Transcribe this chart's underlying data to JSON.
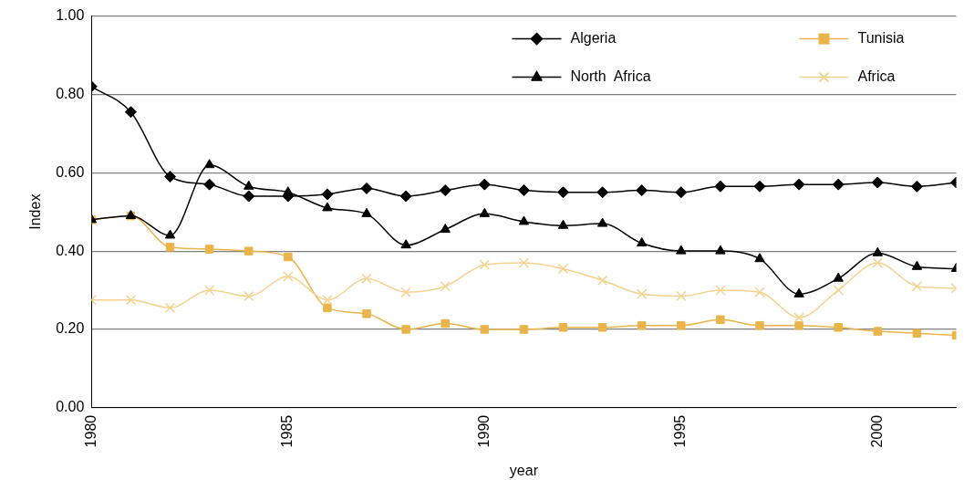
{
  "chart_data": {
    "type": "line",
    "xlabel": "year",
    "ylabel": "Index",
    "x": [
      1980,
      1981,
      1982,
      1983,
      1984,
      1985,
      1986,
      1987,
      1988,
      1989,
      1990,
      1991,
      1992,
      1993,
      1994,
      1995,
      1996,
      1997,
      1998,
      1999,
      2000,
      2001,
      2002
    ],
    "xlim": [
      1980,
      2002
    ],
    "xticks": [
      1980,
      1985,
      1990,
      1995,
      2000
    ],
    "ylim": [
      0,
      1
    ],
    "yticks": [
      {
        "value": 0,
        "label": "0.00"
      },
      {
        "value": 0.2,
        "label": "0.20"
      },
      {
        "value": 0.4,
        "label": "0.40"
      },
      {
        "value": 0.6,
        "label": "0.60"
      },
      {
        "value": 0.8,
        "label": "0.80"
      },
      {
        "value": 1,
        "label": "1.00"
      }
    ],
    "grid": "y",
    "legend": "top right",
    "series": [
      {
        "name": "Algeria",
        "color": "#000000",
        "marker": "diamond",
        "values": [
          0.82,
          0.755,
          0.59,
          0.57,
          0.54,
          0.54,
          0.545,
          0.56,
          0.54,
          0.555,
          0.57,
          0.555,
          0.55,
          0.55,
          0.555,
          0.55,
          0.565,
          0.565,
          0.57,
          0.57,
          0.575,
          0.565,
          0.575
        ]
      },
      {
        "name": "Tunisia",
        "color": "#e9b54a",
        "marker": "square",
        "values": [
          0.48,
          0.49,
          0.41,
          0.405,
          0.4,
          0.385,
          0.255,
          0.24,
          0.2,
          0.215,
          0.2,
          0.2,
          0.205,
          0.205,
          0.21,
          0.21,
          0.225,
          0.21,
          0.21,
          0.205,
          0.195,
          0.19,
          0.185
        ]
      },
      {
        "name": "North  Africa",
        "color": "#000000",
        "marker": "triangle",
        "values": [
          0.48,
          0.49,
          0.44,
          0.62,
          0.565,
          0.55,
          0.51,
          0.495,
          0.415,
          0.455,
          0.495,
          0.475,
          0.465,
          0.47,
          0.42,
          0.4,
          0.4,
          0.38,
          0.29,
          0.33,
          0.395,
          0.36,
          0.355
        ]
      },
      {
        "name": "Africa",
        "color": "#f5d38f",
        "marker": "cross",
        "values": [
          0.275,
          0.275,
          0.255,
          0.3,
          0.285,
          0.335,
          0.275,
          0.33,
          0.295,
          0.31,
          0.365,
          0.37,
          0.355,
          0.325,
          0.29,
          0.285,
          0.3,
          0.295,
          0.23,
          0.3,
          0.37,
          0.31,
          0.305
        ]
      }
    ]
  }
}
